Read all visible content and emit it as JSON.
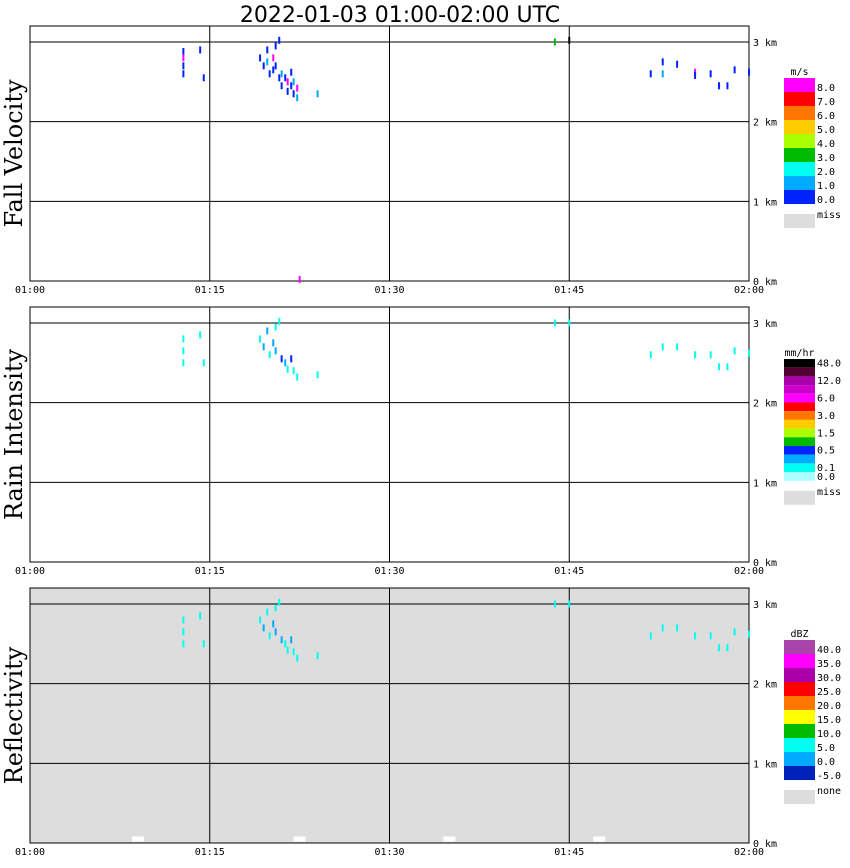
{
  "title": "2022-01-03   01:00-02:00 UTC",
  "x_ticks": [
    "01:00",
    "01:15",
    "01:30",
    "01:45",
    "02:00"
  ],
  "height_ticks": [
    "0 km",
    "1 km",
    "2 km",
    "3 km"
  ],
  "chart_data": [
    {
      "type": "heatmap",
      "ylabel": "Fall Velocity",
      "x_range": [
        "01:00",
        "02:00"
      ],
      "y_range_km": [
        0,
        3.2
      ],
      "background": "#ffffff",
      "colorbar": {
        "unit": "m/s",
        "labels": [
          "8.0",
          "7.0",
          "6.0",
          "5.0",
          "4.0",
          "3.0",
          "2.0",
          "1.0",
          "0.0"
        ],
        "colors": [
          "#ff00ff",
          "#ff0000",
          "#ff7700",
          "#ffcc00",
          "#aaff00",
          "#00bb00",
          "#00ffee",
          "#00aaff",
          "#0022ff"
        ],
        "miss_label": "miss"
      },
      "pixels": [
        {
          "t": 12.8,
          "h": 2.88,
          "c": "#0022ff"
        },
        {
          "t": 12.8,
          "h": 2.8,
          "c": "#ff00ff"
        },
        {
          "t": 12.8,
          "h": 2.7,
          "c": "#0022ff"
        },
        {
          "t": 12.8,
          "h": 2.6,
          "c": "#0022ff"
        },
        {
          "t": 14.2,
          "h": 2.9,
          "c": "#0022ff"
        },
        {
          "t": 14.5,
          "h": 2.55,
          "c": "#0022ff"
        },
        {
          "t": 19.2,
          "h": 2.8,
          "c": "#0022ff"
        },
        {
          "t": 19.5,
          "h": 2.7,
          "c": "#0022ff"
        },
        {
          "t": 19.8,
          "h": 2.9,
          "c": "#0022ff"
        },
        {
          "t": 19.8,
          "h": 2.75,
          "c": "#00aaff"
        },
        {
          "t": 20.0,
          "h": 2.6,
          "c": "#0022ff"
        },
        {
          "t": 20.3,
          "h": 2.8,
          "c": "#ff00ff"
        },
        {
          "t": 20.3,
          "h": 2.65,
          "c": "#0022ff"
        },
        {
          "t": 20.5,
          "h": 2.95,
          "c": "#0022ff"
        },
        {
          "t": 20.5,
          "h": 2.7,
          "c": "#0022ff"
        },
        {
          "t": 20.8,
          "h": 3.02,
          "c": "#0022ff"
        },
        {
          "t": 20.8,
          "h": 2.55,
          "c": "#0022ff"
        },
        {
          "t": 21.0,
          "h": 2.6,
          "c": "#00aaff"
        },
        {
          "t": 21.0,
          "h": 2.45,
          "c": "#0022ff"
        },
        {
          "t": 21.3,
          "h": 2.55,
          "c": "#0022ff"
        },
        {
          "t": 21.5,
          "h": 2.5,
          "c": "#ff00ff"
        },
        {
          "t": 21.5,
          "h": 2.38,
          "c": "#0022ff"
        },
        {
          "t": 21.8,
          "h": 2.62,
          "c": "#0022ff"
        },
        {
          "t": 21.8,
          "h": 2.45,
          "c": "#0022ff"
        },
        {
          "t": 22.0,
          "h": 2.5,
          "c": "#00aaff"
        },
        {
          "t": 22.0,
          "h": 2.35,
          "c": "#0022ff"
        },
        {
          "t": 22.3,
          "h": 2.42,
          "c": "#ff00ff"
        },
        {
          "t": 22.3,
          "h": 2.3,
          "c": "#00aaff"
        },
        {
          "t": 24.0,
          "h": 2.35,
          "c": "#00aaff"
        },
        {
          "t": 22.5,
          "h": 0.02,
          "c": "#ff00ff"
        },
        {
          "t": 43.8,
          "h": 3.0,
          "c": "#00bb00"
        },
        {
          "t": 45.0,
          "h": 3.02,
          "c": "#000000"
        },
        {
          "t": 51.8,
          "h": 2.6,
          "c": "#0022ff"
        },
        {
          "t": 52.8,
          "h": 2.75,
          "c": "#0022ff"
        },
        {
          "t": 52.8,
          "h": 2.6,
          "c": "#00aaff"
        },
        {
          "t": 54.0,
          "h": 2.72,
          "c": "#0022ff"
        },
        {
          "t": 55.5,
          "h": 2.62,
          "c": "#ff00ff"
        },
        {
          "t": 55.5,
          "h": 2.58,
          "c": "#0022ff"
        },
        {
          "t": 56.8,
          "h": 2.6,
          "c": "#0022ff"
        },
        {
          "t": 57.5,
          "h": 2.45,
          "c": "#0022ff"
        },
        {
          "t": 58.2,
          "h": 2.45,
          "c": "#0022ff"
        },
        {
          "t": 58.8,
          "h": 2.65,
          "c": "#0022ff"
        },
        {
          "t": 60.0,
          "h": 2.62,
          "c": "#0022ff"
        }
      ]
    },
    {
      "type": "heatmap",
      "ylabel": "Rain Intensity",
      "x_range": [
        "01:00",
        "02:00"
      ],
      "y_range_km": [
        0,
        3.2
      ],
      "background": "#ffffff",
      "colorbar": {
        "unit": "mm/hr",
        "labels": [
          "48.0",
          "",
          "12.0",
          "",
          "6.0",
          "",
          "3.0",
          "",
          "1.5",
          "",
          "0.5",
          "",
          "0.1",
          "0.0"
        ],
        "colors": [
          "#000000",
          "#550033",
          "#aa00aa",
          "#cc00cc",
          "#ff00ff",
          "#ff0000",
          "#ff7700",
          "#ffcc00",
          "#aaff00",
          "#00bb00",
          "#0022ff",
          "#00aaff",
          "#00ffee",
          "#aaffff"
        ],
        "miss_label": "miss"
      },
      "pixels": [
        {
          "t": 12.8,
          "h": 2.8,
          "c": "#00ffee"
        },
        {
          "t": 12.8,
          "h": 2.65,
          "c": "#00ffee"
        },
        {
          "t": 12.8,
          "h": 2.5,
          "c": "#00ffee"
        },
        {
          "t": 14.2,
          "h": 2.85,
          "c": "#00ffee"
        },
        {
          "t": 14.5,
          "h": 2.5,
          "c": "#00ffee"
        },
        {
          "t": 19.2,
          "h": 2.8,
          "c": "#00ffee"
        },
        {
          "t": 19.5,
          "h": 2.7,
          "c": "#00aaff"
        },
        {
          "t": 19.8,
          "h": 2.9,
          "c": "#00aaff"
        },
        {
          "t": 20.0,
          "h": 2.6,
          "c": "#00ffee"
        },
        {
          "t": 20.3,
          "h": 2.75,
          "c": "#00aaff"
        },
        {
          "t": 20.5,
          "h": 2.95,
          "c": "#00ffee"
        },
        {
          "t": 20.5,
          "h": 2.65,
          "c": "#00aaff"
        },
        {
          "t": 20.8,
          "h": 3.02,
          "c": "#00ffee"
        },
        {
          "t": 21.0,
          "h": 2.55,
          "c": "#0022ff"
        },
        {
          "t": 21.3,
          "h": 2.5,
          "c": "#00aaff"
        },
        {
          "t": 21.5,
          "h": 2.42,
          "c": "#00ffee"
        },
        {
          "t": 21.8,
          "h": 2.55,
          "c": "#0022ff"
        },
        {
          "t": 22.0,
          "h": 2.4,
          "c": "#00ffee"
        },
        {
          "t": 22.3,
          "h": 2.32,
          "c": "#00ffee"
        },
        {
          "t": 24.0,
          "h": 2.35,
          "c": "#00ffee"
        },
        {
          "t": 43.8,
          "h": 3.0,
          "c": "#00ffee"
        },
        {
          "t": 45.0,
          "h": 3.0,
          "c": "#00ffee"
        },
        {
          "t": 51.8,
          "h": 2.6,
          "c": "#00ffee"
        },
        {
          "t": 52.8,
          "h": 2.7,
          "c": "#00ffee"
        },
        {
          "t": 54.0,
          "h": 2.7,
          "c": "#00ffee"
        },
        {
          "t": 55.5,
          "h": 2.6,
          "c": "#00ffee"
        },
        {
          "t": 56.8,
          "h": 2.6,
          "c": "#00ffee"
        },
        {
          "t": 57.5,
          "h": 2.45,
          "c": "#00ffee"
        },
        {
          "t": 58.2,
          "h": 2.45,
          "c": "#00ffee"
        },
        {
          "t": 58.8,
          "h": 2.65,
          "c": "#00ffee"
        },
        {
          "t": 60.0,
          "h": 2.62,
          "c": "#00ffee"
        }
      ]
    },
    {
      "type": "heatmap",
      "ylabel": "Reflectivity",
      "x_range": [
        "01:00",
        "02:00"
      ],
      "y_range_km": [
        0,
        3.2
      ],
      "background": "#dddddd",
      "colorbar": {
        "unit": "dBZ",
        "labels": [
          "40.0",
          "35.0",
          "30.0",
          "25.0",
          "20.0",
          "15.0",
          "10.0",
          "5.0",
          "0.0",
          "-5.0"
        ],
        "colors": [
          "#aa44aa",
          "#ff00ff",
          "#aa00aa",
          "#ff0000",
          "#ff7700",
          "#ffff00",
          "#00bb00",
          "#00ffee",
          "#00aaff",
          "#0022bb"
        ],
        "miss_label": "none"
      },
      "pixels": [
        {
          "t": 12.8,
          "h": 2.8,
          "c": "#00ffee"
        },
        {
          "t": 12.8,
          "h": 2.65,
          "c": "#00ffee"
        },
        {
          "t": 12.8,
          "h": 2.5,
          "c": "#00ffee"
        },
        {
          "t": 14.2,
          "h": 2.85,
          "c": "#00ffee"
        },
        {
          "t": 14.5,
          "h": 2.5,
          "c": "#00ffee"
        },
        {
          "t": 19.2,
          "h": 2.8,
          "c": "#00ffee"
        },
        {
          "t": 19.5,
          "h": 2.7,
          "c": "#00aaff"
        },
        {
          "t": 19.8,
          "h": 2.9,
          "c": "#00ffee"
        },
        {
          "t": 20.0,
          "h": 2.6,
          "c": "#00ffee"
        },
        {
          "t": 20.3,
          "h": 2.75,
          "c": "#00aaff"
        },
        {
          "t": 20.5,
          "h": 2.95,
          "c": "#00ffee"
        },
        {
          "t": 20.5,
          "h": 2.65,
          "c": "#00aaff"
        },
        {
          "t": 20.8,
          "h": 3.02,
          "c": "#00ffee"
        },
        {
          "t": 21.0,
          "h": 2.55,
          "c": "#00aaff"
        },
        {
          "t": 21.3,
          "h": 2.5,
          "c": "#00ffee"
        },
        {
          "t": 21.5,
          "h": 2.42,
          "c": "#00ffee"
        },
        {
          "t": 21.8,
          "h": 2.55,
          "c": "#00aaff"
        },
        {
          "t": 22.0,
          "h": 2.4,
          "c": "#00ffee"
        },
        {
          "t": 22.3,
          "h": 2.32,
          "c": "#00ffee"
        },
        {
          "t": 24.0,
          "h": 2.35,
          "c": "#00ffee"
        },
        {
          "t": 43.8,
          "h": 3.0,
          "c": "#00ffee"
        },
        {
          "t": 45.0,
          "h": 3.0,
          "c": "#00ffee"
        },
        {
          "t": 51.8,
          "h": 2.6,
          "c": "#00ffee"
        },
        {
          "t": 52.8,
          "h": 2.7,
          "c": "#00ffee"
        },
        {
          "t": 54.0,
          "h": 2.7,
          "c": "#00ffee"
        },
        {
          "t": 55.5,
          "h": 2.6,
          "c": "#00ffee"
        },
        {
          "t": 56.8,
          "h": 2.6,
          "c": "#00ffee"
        },
        {
          "t": 57.5,
          "h": 2.45,
          "c": "#00ffee"
        },
        {
          "t": 58.2,
          "h": 2.45,
          "c": "#00ffee"
        },
        {
          "t": 58.8,
          "h": 2.65,
          "c": "#00ffee"
        },
        {
          "t": 60.0,
          "h": 2.62,
          "c": "#00ffee"
        },
        {
          "t": 9.0,
          "h": 0.05,
          "c": "#ffffff"
        },
        {
          "t": 22.5,
          "h": 0.05,
          "c": "#ffffff"
        },
        {
          "t": 35.0,
          "h": 0.05,
          "c": "#ffffff"
        },
        {
          "t": 47.5,
          "h": 0.05,
          "c": "#ffffff"
        }
      ]
    }
  ]
}
